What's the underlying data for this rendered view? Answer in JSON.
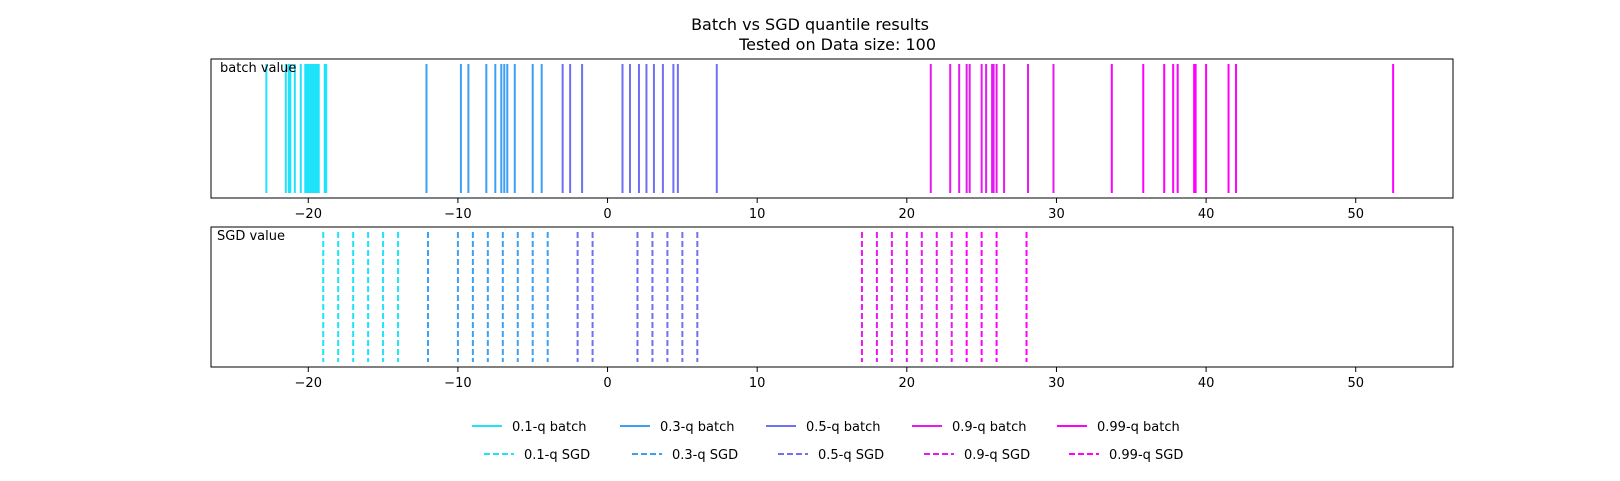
{
  "chart_data": {
    "type": "event-lines",
    "title_line1": "Batch vs SGD quantile results",
    "title_line2": "Tested on Data size: 100",
    "xlim": [
      -26.5,
      56.5
    ],
    "xticks": [
      -20,
      -10,
      0,
      10,
      20,
      30,
      40,
      50
    ],
    "panels": [
      {
        "label": "batch value",
        "linestyle": "solid",
        "series": [
          {
            "name": "0.1-q batch",
            "color": "#1ee3fa",
            "values": [
              -22.8,
              -21.5,
              -21.3,
              -21.2,
              -20.9,
              -20.5,
              -20.2,
              -20.1,
              -20.0,
              -19.9,
              -19.8,
              -19.7,
              -19.6,
              -19.5,
              -19.4,
              -19.3,
              -18.9,
              -18.8
            ]
          },
          {
            "name": "0.3-q batch",
            "color": "#3ca0f5",
            "values": [
              -12.1,
              -9.8,
              -9.3,
              -8.1,
              -7.5,
              -7.1,
              -6.9,
              -6.7,
              -6.2,
              -5.0,
              -4.4
            ]
          },
          {
            "name": "0.5-q batch",
            "color": "#7070f2",
            "values": [
              -3.0,
              -2.5,
              -1.7,
              1.0,
              1.5,
              2.1,
              2.6,
              3.1,
              3.7,
              4.4,
              4.7,
              7.3
            ]
          },
          {
            "name": "0.9-q batch",
            "color": "#e619f0",
            "values": [
              21.6,
              22.9,
              23.5,
              24.0,
              24.2,
              25.0,
              25.3,
              25.7,
              25.8,
              26.0,
              26.5,
              28.1,
              29.8
            ]
          },
          {
            "name": "0.99-q batch",
            "color": "#ff00ff",
            "values": [
              33.7,
              35.8,
              37.2,
              37.8,
              38.1,
              39.2,
              39.3,
              40.0,
              41.5,
              42.0,
              52.5
            ]
          }
        ]
      },
      {
        "label": "SGD value",
        "linestyle": "dashed",
        "series": [
          {
            "name": "0.1-q SGD",
            "color": "#1ee3fa",
            "values": [
              -19,
              -18,
              -17,
              -16,
              -15,
              -14
            ]
          },
          {
            "name": "0.3-q SGD",
            "color": "#3ca0f5",
            "values": [
              -12,
              -10,
              -9,
              -8,
              -7,
              -6,
              -5,
              -4
            ]
          },
          {
            "name": "0.5-q SGD",
            "color": "#7070f2",
            "values": [
              -2,
              -1,
              2,
              3,
              4,
              5,
              6
            ]
          },
          {
            "name": "0.9-q SGD",
            "color": "#e619f0",
            "values": [
              17,
              18,
              19,
              20,
              21,
              22,
              23
            ]
          },
          {
            "name": "0.99-q SGD",
            "color": "#ff00ff",
            "values": [
              24,
              25,
              26,
              28
            ]
          }
        ]
      }
    ],
    "legend": {
      "placement": "bottom-center",
      "rows": [
        [
          "0.1-q batch",
          "0.3-q batch",
          "0.5-q batch",
          "0.9-q batch",
          "0.99-q batch"
        ],
        [
          "0.1-q SGD",
          "0.3-q SGD",
          "0.5-q SGD",
          "0.9-q SGD",
          "0.99-q SGD"
        ]
      ]
    }
  }
}
